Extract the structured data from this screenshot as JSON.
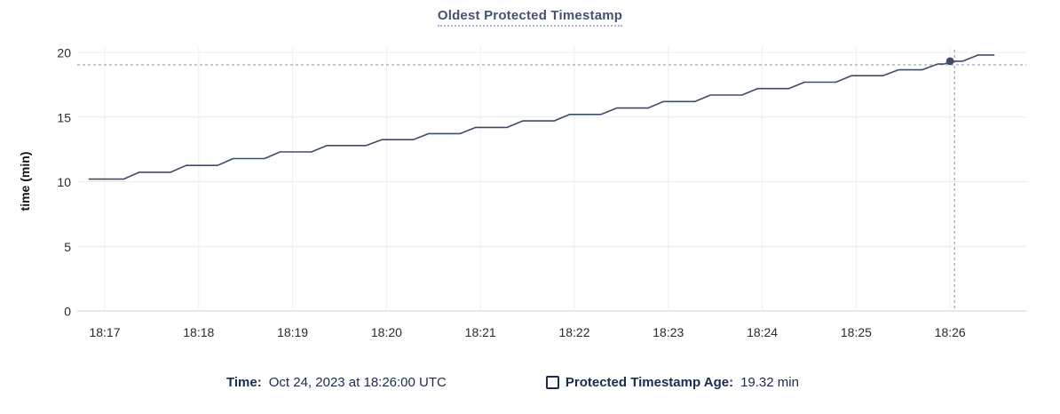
{
  "colors": {
    "background": "#ffffff",
    "title": "#44536f",
    "title_underline": "#aab8c9",
    "series_line": "#3e4c68",
    "legend_text": "#1c2b4e",
    "tick_text": "#2a2a2a",
    "grid_h": "#ececec",
    "grid_v": "#efefef",
    "axis": "#d0d0d0",
    "crosshair": "#a3b4c4"
  },
  "chart_data": {
    "type": "line",
    "title": "Oldest Protected Timestamp",
    "xlabel": "",
    "ylabel": "time (min)",
    "ylim": [
      0,
      20
    ],
    "yticks": [
      0,
      5,
      10,
      15,
      20
    ],
    "xticks": [
      "18:17",
      "18:18",
      "18:19",
      "18:20",
      "18:21",
      "18:22",
      "18:23",
      "18:24",
      "18:25",
      "18:26"
    ],
    "grid": true,
    "legend_position": "bottom",
    "series": [
      {
        "name": "Protected Timestamp Age",
        "unit": "min",
        "color": "#3e4c68",
        "points": [
          [
            "18:16:50",
            10.2
          ],
          [
            "18:17:12",
            10.2
          ],
          [
            "18:17:22",
            10.73
          ],
          [
            "18:17:42",
            10.73
          ],
          [
            "18:17:52",
            11.26
          ],
          [
            "18:18:12",
            11.26
          ],
          [
            "18:18:22",
            11.79
          ],
          [
            "18:18:42",
            11.79
          ],
          [
            "18:18:52",
            12.3
          ],
          [
            "18:19:12",
            12.3
          ],
          [
            "18:19:22",
            12.8
          ],
          [
            "18:19:47",
            12.8
          ],
          [
            "18:19:57",
            13.25
          ],
          [
            "18:20:17",
            13.25
          ],
          [
            "18:20:27",
            13.72
          ],
          [
            "18:20:47",
            13.72
          ],
          [
            "18:20:57",
            14.2
          ],
          [
            "18:21:17",
            14.2
          ],
          [
            "18:21:27",
            14.7
          ],
          [
            "18:21:47",
            14.7
          ],
          [
            "18:21:57",
            15.2
          ],
          [
            "18:22:17",
            15.2
          ],
          [
            "18:22:27",
            15.7
          ],
          [
            "18:22:47",
            15.7
          ],
          [
            "18:22:57",
            16.2
          ],
          [
            "18:23:17",
            16.2
          ],
          [
            "18:23:27",
            16.7
          ],
          [
            "18:23:47",
            16.7
          ],
          [
            "18:23:57",
            17.2
          ],
          [
            "18:24:17",
            17.2
          ],
          [
            "18:24:27",
            17.7
          ],
          [
            "18:24:47",
            17.7
          ],
          [
            "18:24:57",
            18.2
          ],
          [
            "18:25:17",
            18.2
          ],
          [
            "18:25:27",
            18.65
          ],
          [
            "18:25:42",
            18.65
          ],
          [
            "18:25:52",
            19.1
          ],
          [
            "18:25:56",
            19.1
          ],
          [
            "18:26:02",
            19.32
          ],
          [
            "18:26:08",
            19.32
          ],
          [
            "18:26:18",
            19.8
          ],
          [
            "18:26:28",
            19.8
          ]
        ]
      }
    ],
    "hover": {
      "time": "18:26:00",
      "value": 19.32,
      "crosshair": true
    }
  },
  "legend": {
    "time_label": "Time:",
    "time_value": "Oct 24, 2023 at 18:26:00 UTC",
    "series_label": "Protected Timestamp Age:",
    "series_value": "19.32 min"
  }
}
